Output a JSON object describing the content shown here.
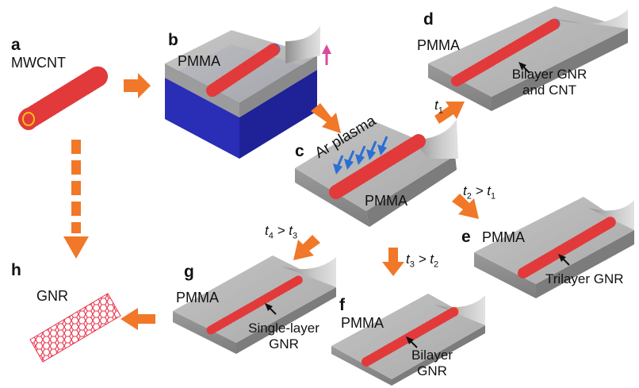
{
  "panels": {
    "a": {
      "letter": "a",
      "label": "MWCNT"
    },
    "b": {
      "letter": "b",
      "label": "PMMA"
    },
    "c": {
      "letter": "c",
      "label": "PMMA",
      "plasma": "Ar plasma"
    },
    "d": {
      "letter": "d",
      "label": "PMMA",
      "note_line1": "Bilayer GNR",
      "note_line2": "and CNT"
    },
    "e": {
      "letter": "e",
      "label": "PMMA",
      "note": "Trilayer GNR"
    },
    "f": {
      "letter": "f",
      "label": "PMMA",
      "note_line1": "Bilayer",
      "note_line2": "GNR"
    },
    "g": {
      "letter": "g",
      "label": "PMMA",
      "note_line1": "Single-layer",
      "note_line2": "GNR"
    },
    "h": {
      "letter": "h",
      "label": "GNR"
    }
  },
  "timings": {
    "cd": {
      "t": "t",
      "s": "1",
      "rest": ""
    },
    "ce": {
      "t": "t",
      "s": "2",
      "rest": " > t",
      "s2": "1"
    },
    "cf": {
      "t": "t",
      "s": "3",
      "rest": " > t",
      "s2": "2"
    },
    "cg": {
      "t": "t",
      "s": "4",
      "rest": " > t",
      "s2": "3"
    }
  },
  "colors": {
    "arrow": "#f07828",
    "pmma_top": "#b9b9b9",
    "pmma_side": "#8a8a8a",
    "substrate": "#2e32c0",
    "plasma_arrow": "#2a6fd6",
    "peel_arrow": "#d84a9c",
    "gnr": "#e8304a"
  }
}
